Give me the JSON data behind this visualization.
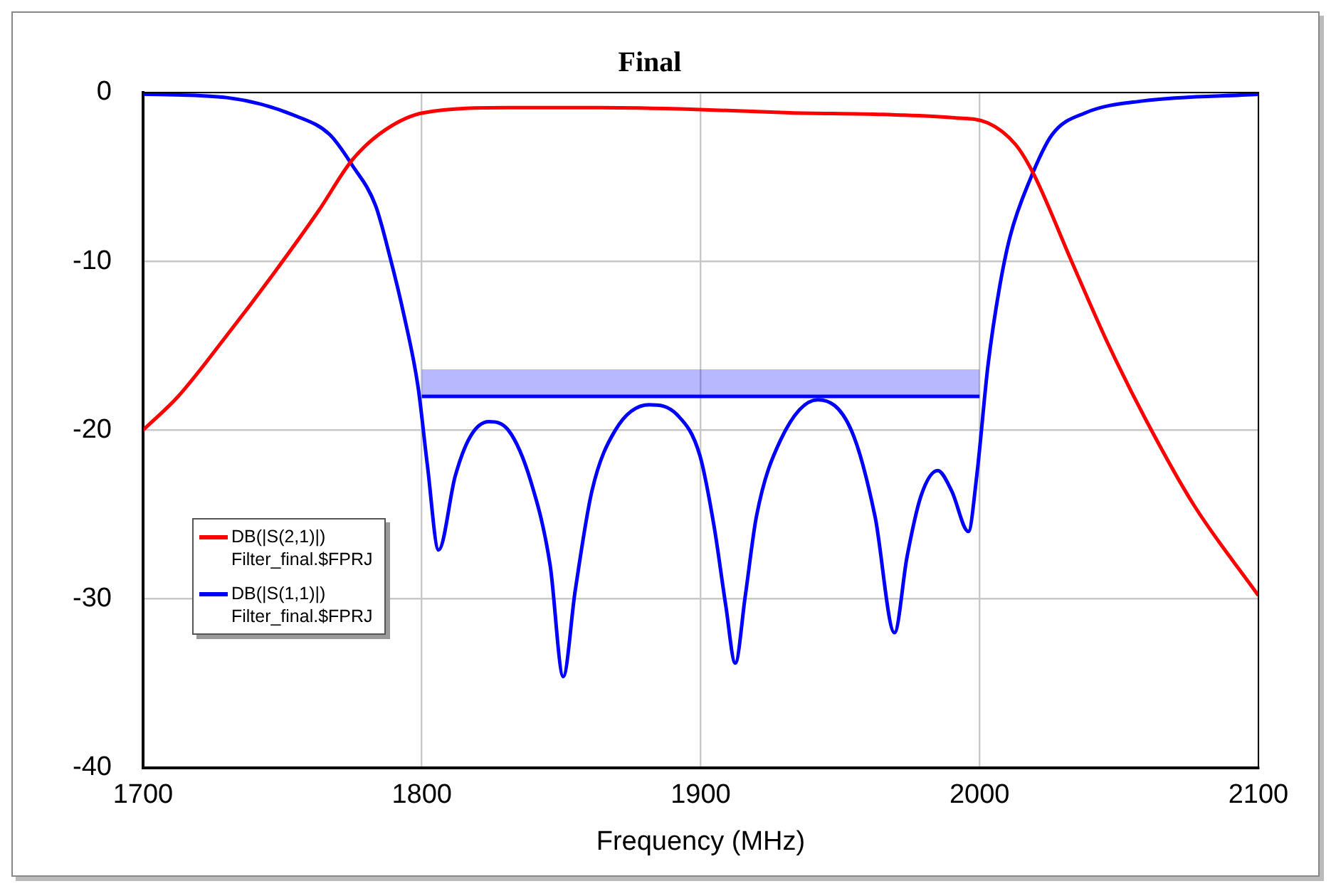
{
  "chart_data": {
    "type": "line",
    "title": "Final",
    "xlabel": "Frequency (MHz)",
    "xlim": [
      1700,
      2100
    ],
    "xticks": [
      1700,
      1800,
      1900,
      2000,
      2100
    ],
    "ylim": [
      -40,
      0
    ],
    "yticks": [
      -40,
      -30,
      -20,
      -10,
      0
    ],
    "grid": true,
    "legend": "left",
    "marker": "none",
    "line_style": "solid",
    "series": [
      {
        "name": "DB(|S(2,1)|)\nFilter_final.$FPRJ",
        "color": "#ff0000",
        "x": [
          1700,
          1712.6,
          1730,
          1746.5,
          1763,
          1775,
          1787,
          1800.6,
          1831,
          1864,
          1898,
          1932,
          1965.5,
          1991,
          2003,
          2013,
          2019.6,
          2033,
          2046.4,
          2060,
          2076.7,
          2100
        ],
        "values": [
          -20.0,
          -18.0,
          -14.4,
          -10.8,
          -7.0,
          -4.0,
          -2.2,
          -1.2,
          -0.9,
          -0.9,
          -1.0,
          -1.2,
          -1.3,
          -1.5,
          -1.8,
          -3.1,
          -4.9,
          -10.0,
          -15.0,
          -19.5,
          -24.4,
          -29.8
        ]
      },
      {
        "name": "DB(|S(1,1)|)\nFilter_final.$FPRJ",
        "color": "#0000ff",
        "x": [
          1700,
          1730,
          1755,
          1767,
          1775,
          1783.4,
          1788.5,
          1793.6,
          1798.6,
          1802,
          1806,
          1812,
          1817.3,
          1824,
          1831,
          1839,
          1846,
          1850.7,
          1855,
          1861,
          1869.4,
          1881.5,
          1891.6,
          1899.7,
          1904.8,
          1909,
          1912.4,
          1916,
          1920,
          1928.6,
          1942,
          1954,
          1962.5,
          1969.5,
          1974,
          1979,
          1985,
          1990,
          1996,
          1999,
          2003,
          2007,
          2011,
          2018,
          2026,
          2038,
          2058.5,
          2100
        ],
        "values": [
          -0.1,
          -0.3,
          -1.4,
          -2.5,
          -4.3,
          -6.7,
          -9.7,
          -13.2,
          -17.4,
          -22.1,
          -27.1,
          -22.7,
          -20.4,
          -19.5,
          -20.0,
          -23.0,
          -28.0,
          -34.6,
          -29.5,
          -23.6,
          -20.0,
          -18.5,
          -19.1,
          -21.5,
          -25.7,
          -30.4,
          -33.8,
          -29.8,
          -25.1,
          -20.6,
          -18.2,
          -20.0,
          -25.1,
          -32.0,
          -27.5,
          -23.9,
          -22.4,
          -23.6,
          -26.0,
          -22.7,
          -16.2,
          -11.7,
          -8.5,
          -5.2,
          -2.5,
          -1.2,
          -0.5,
          -0.1
        ]
      },
      {
        "color": "#0000ff",
        "x": [
          1800,
          2000
        ],
        "values": [
          -18,
          -18
        ],
        "lower": [
          -18,
          -18
        ],
        "upper": [
          -16.4,
          -16.4
        ]
      }
    ]
  }
}
